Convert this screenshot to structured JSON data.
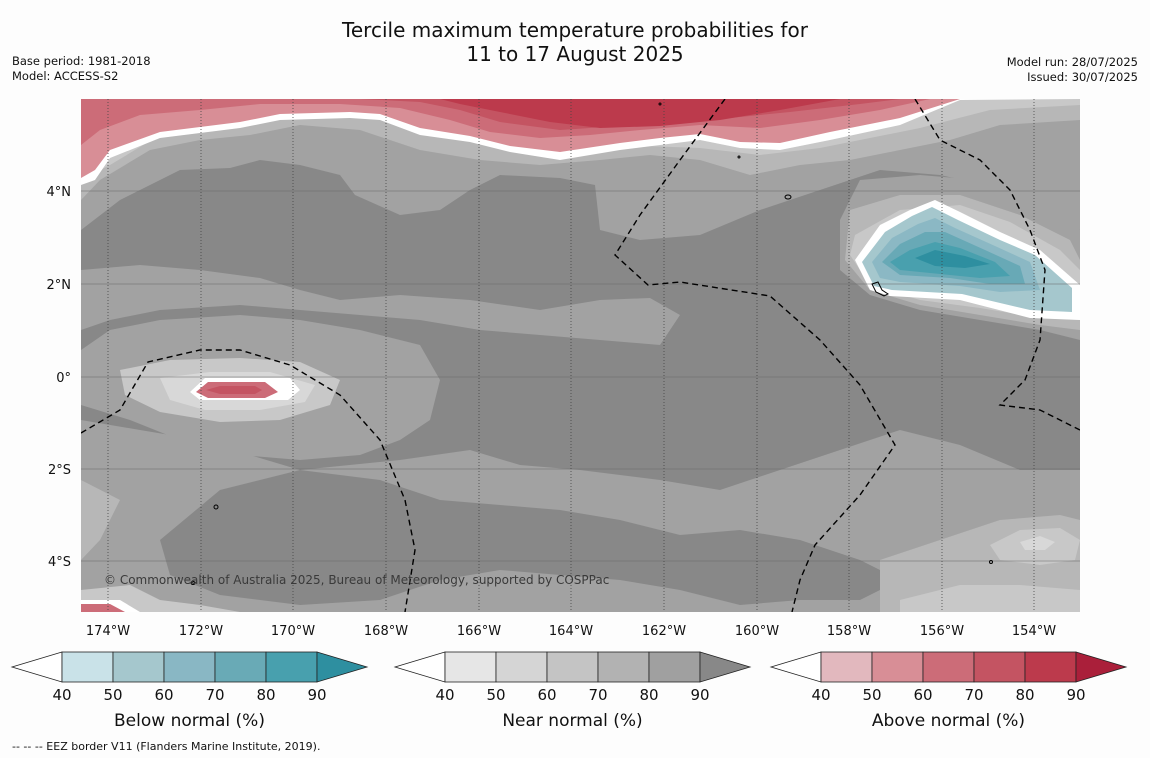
{
  "title": {
    "line1": "Tercile maximum temperature probabilities for",
    "line2": "11 to 17 August 2025"
  },
  "meta_left": {
    "base_period": "Base period: 1981-2018",
    "model": "Model: ACCESS-S2"
  },
  "meta_right": {
    "model_run": "Model run: 28/07/2025",
    "issued": "Issued: 30/07/2025"
  },
  "map": {
    "x_ticks": [
      "174°W",
      "172°W",
      "170°W",
      "168°W",
      "166°W",
      "164°W",
      "162°W",
      "160°W",
      "158°W",
      "156°W",
      "154°W"
    ],
    "y_ticks": [
      "4°N",
      "2°N",
      "0°",
      "2°S",
      "4°S"
    ],
    "copyright": "© Commonwealth of Australia 2025, Bureau of Meteorology, supported by COSPPac",
    "colors": {
      "ocean_near_90": "#888888",
      "near_80": "#a2a2a2",
      "near_70": "#b7b7b7",
      "near_60": "#c8c8c8",
      "near_50": "#d8d8d8",
      "above_50": "#d88e96",
      "above_60": "#cc6c78",
      "above_70": "#c45462",
      "above_80": "#bc3a4c",
      "below_50": "#a5c7cd",
      "below_60": "#8bb8c4",
      "below_70": "#68a9b6",
      "below_80": "#49a0ae",
      "below_90": "#2e8fa0"
    }
  },
  "colorbars": [
    {
      "title": "Below normal (%)",
      "ticks": [
        "40",
        "50",
        "60",
        "70",
        "80",
        "90"
      ],
      "colors": [
        "#ffffff",
        "#c9e2e8",
        "#a5c7cd",
        "#89b7c4",
        "#69aab6",
        "#48a0ae",
        "#2e8fa0"
      ]
    },
    {
      "title": "Near normal (%)",
      "ticks": [
        "40",
        "50",
        "60",
        "70",
        "80",
        "90"
      ],
      "colors": [
        "#ffffff",
        "#e6e6e6",
        "#d5d5d5",
        "#c4c4c4",
        "#b2b2b2",
        "#a0a0a0",
        "#888888"
      ]
    },
    {
      "title": "Above normal (%)",
      "ticks": [
        "40",
        "50",
        "60",
        "70",
        "80",
        "90"
      ],
      "colors": [
        "#ffffff",
        "#e2b8be",
        "#d88e96",
        "#cc6c78",
        "#c45462",
        "#bc3a4c",
        "#aa1f3a"
      ]
    }
  ],
  "footnote": "--  --  -- EEZ border V11 (Flanders Marine Institute, 2019)."
}
